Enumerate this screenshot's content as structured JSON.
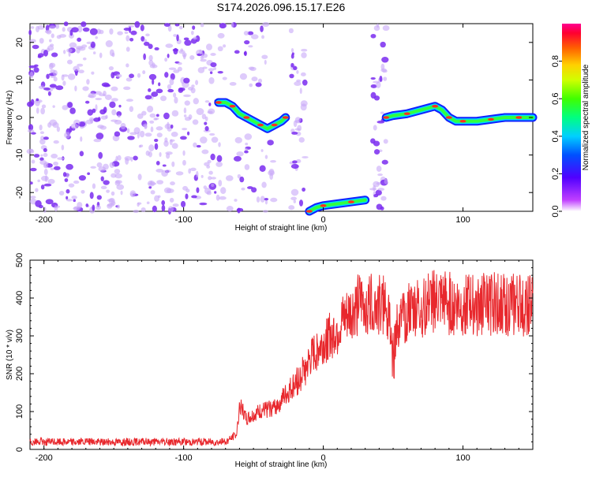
{
  "title": "S174.2026.096.15.17.E26",
  "colors": {
    "blob_purple": "#7a2cf0",
    "blob_light": "#c8a8f8",
    "snr_line": "#e8282d"
  },
  "chart_data": [
    {
      "type": "heatmap",
      "name": "spectrogram",
      "xlabel": "Height of straight line (km)",
      "ylabel": "Frequency (Hz)",
      "xlim": [
        -210,
        150
      ],
      "ylim": [
        -25,
        25
      ],
      "x_ticks": [
        "-200",
        "-100",
        "0",
        "100"
      ],
      "y_ticks": [
        "20",
        "10",
        "0",
        "-10",
        "-20"
      ],
      "colorbar": {
        "label": "Normalized spectral amplitude",
        "range": [
          0,
          1
        ],
        "ticks": [
          "0.0",
          "0.2",
          "0.4",
          "0.6",
          "0.8"
        ]
      },
      "tracks": [
        {
          "name": "track-left",
          "points": [
            [
              -75,
              4
            ],
            [
              -70,
              4
            ],
            [
              -65,
              3
            ],
            [
              -60,
              1
            ],
            [
              -55,
              0
            ],
            [
              -50,
              -1
            ],
            [
              -45,
              -2
            ],
            [
              -40,
              -3
            ],
            [
              -35,
              -2
            ],
            [
              -30,
              -1
            ],
            [
              -27,
              0
            ]
          ]
        },
        {
          "name": "track-bottom",
          "points": [
            [
              -10,
              -25
            ],
            [
              -5,
              -24
            ],
            [
              0,
              -23.5
            ],
            [
              10,
              -23
            ],
            [
              20,
              -22.5
            ],
            [
              30,
              -22
            ]
          ]
        },
        {
          "name": "track-right",
          "points": [
            [
              45,
              0
            ],
            [
              50,
              0.5
            ],
            [
              60,
              1
            ],
            [
              70,
              2
            ],
            [
              80,
              3
            ],
            [
              85,
              2
            ],
            [
              90,
              0
            ],
            [
              95,
              -1
            ],
            [
              100,
              -1
            ],
            [
              110,
              -1
            ],
            [
              120,
              -0.5
            ],
            [
              130,
              0
            ],
            [
              140,
              0
            ],
            [
              150,
              0
            ]
          ]
        }
      ]
    },
    {
      "type": "line",
      "name": "snr",
      "xlabel": "Height of straight line (km)",
      "ylabel": "SNR (10 * v/v)",
      "xlim": [
        -210,
        150
      ],
      "ylim": [
        0,
        500
      ],
      "x_ticks": [
        "-200",
        "-100",
        "0",
        "100"
      ],
      "y_ticks": [
        "0",
        "100",
        "200",
        "300",
        "400",
        "500"
      ],
      "envelope": {
        "x": [
          -210,
          -70,
          -62,
          -60,
          -55,
          -45,
          -35,
          -25,
          -15,
          -5,
          5,
          15,
          25,
          35,
          45,
          50,
          60,
          80,
          100,
          120,
          150
        ],
        "y": [
          20,
          20,
          40,
          120,
          80,
          100,
          110,
          150,
          200,
          260,
          300,
          340,
          380,
          390,
          380,
          300,
          360,
          390,
          380,
          385,
          380
        ]
      }
    }
  ]
}
